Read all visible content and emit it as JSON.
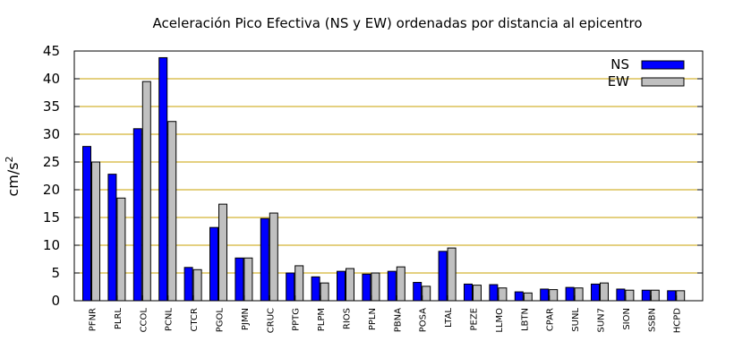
{
  "chart_data": {
    "type": "bar",
    "title": "Aceleración Pico Efectiva (NS y EW) ordenadas por distancia al epicentro",
    "ylabel": "cm/s",
    "ylabel_superscript": "2",
    "xlabel": "",
    "ylim": [
      0,
      45
    ],
    "yticks": [
      0,
      5,
      10,
      15,
      20,
      25,
      30,
      35,
      40,
      45
    ],
    "grid": true,
    "legend_position": "top-right",
    "categories": [
      "PFNR",
      "PLRL",
      "CCOL",
      "PCNL",
      "CTCR",
      "PGOL",
      "PJMN",
      "CRUC",
      "PPTG",
      "PLPM",
      "RIOS",
      "PPLN",
      "PBNA",
      "POSA",
      "LTAL",
      "PEZE",
      "LLMO",
      "LBTN",
      "CPAR",
      "SUNL",
      "SUN7",
      "SION",
      "SSBN",
      "HCPD"
    ],
    "series": [
      {
        "name": "NS",
        "color": "#0000ff",
        "values": [
          27.8,
          22.8,
          31.0,
          43.8,
          6.0,
          13.2,
          7.7,
          14.8,
          5.0,
          4.3,
          5.3,
          4.8,
          5.3,
          3.3,
          8.9,
          3.0,
          2.9,
          1.6,
          2.1,
          2.4,
          3.0,
          2.1,
          1.9,
          1.8
        ]
      },
      {
        "name": "EW",
        "color": "#c0c0c0",
        "values": [
          25.0,
          18.5,
          39.5,
          32.3,
          5.6,
          17.4,
          7.7,
          15.8,
          6.3,
          3.2,
          5.8,
          5.0,
          6.1,
          2.6,
          9.5,
          2.8,
          2.3,
          1.4,
          2.0,
          2.3,
          3.2,
          1.9,
          1.9,
          1.8
        ]
      }
    ],
    "grid_color": "#c8a000"
  }
}
